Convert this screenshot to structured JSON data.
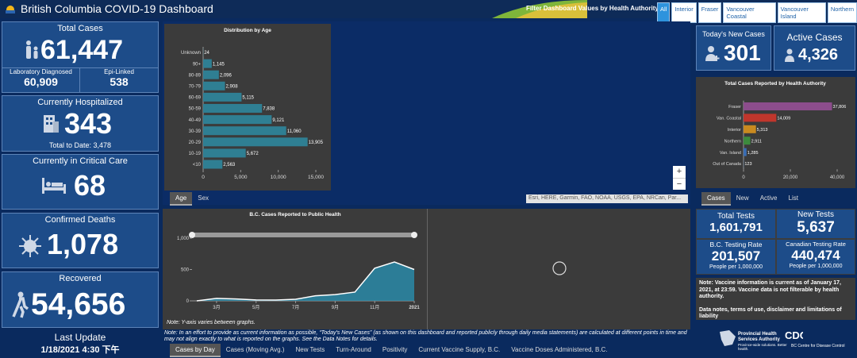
{
  "header": {
    "title": "British Columbia COVID-19 Dashboard",
    "filter_label": "Filter Dashboard Values by Health Authority:",
    "filters": [
      "All",
      "Interior",
      "Fraser",
      "Vancouver Coastal",
      "Vancouver Island",
      "Northern"
    ]
  },
  "left": {
    "total_cases": {
      "label": "Total Cases",
      "value": "61,447",
      "lab_label": "Laboratory Diagnosed",
      "lab_value": "60,909",
      "epi_label": "Epi-Linked",
      "epi_value": "538"
    },
    "hospitalized": {
      "label": "Currently Hospitalized",
      "value": "343",
      "note": "Total to Date: 3,478"
    },
    "critical": {
      "label": "Currently in Critical Care",
      "value": "68"
    },
    "deaths": {
      "label": "Confirmed Deaths",
      "value": "1,078"
    },
    "recovered": {
      "label": "Recovered",
      "value": "54,656"
    },
    "update": {
      "label": "Last Update",
      "value": "1/18/2021 4:30 下午"
    }
  },
  "map": {
    "tabs": [
      "Age",
      "Sex"
    ],
    "attribution": "Esri, HERE, Garmin, FAO, NOAA, USGS, EPA, NRCan, Par...",
    "zoom": [
      "+",
      "−"
    ]
  },
  "right": {
    "new_cases": {
      "label": "Today's New Cases",
      "value": "301"
    },
    "active": {
      "label": "Active Cases",
      "value": "4,326"
    },
    "tabs": [
      "Cases",
      "New",
      "Active",
      "List"
    ],
    "tests": {
      "total_label": "Total Tests",
      "total_value": "1,601,791",
      "new_label": "New Tests",
      "new_value": "5,637",
      "bc_label": "B.C. Testing Rate",
      "bc_value": "201,507",
      "bc_unit": "People per 1,000,000",
      "ca_label": "Canadian Testing Rate",
      "ca_value": "440,474",
      "ca_unit": "People per 1,000,000"
    },
    "note": "Note: Vaccine information is current as of January 17, 2021, at 23:59. Vaccine data is not filterable by health authority.",
    "links": "Data notes, terms of use, disclaimer and limitations of liability",
    "logo1": "Provincial Health Services Authority",
    "logo1_tag": "Province-wide solutions. Better health.",
    "logo2": "BC Centre for Disease Control"
  },
  "bottom": {
    "graph_note": "Note: Y-axis varies between graphs.",
    "note": "Note: In an effort to provide as current information as possible, “Today's New Cases” (as shown on this dashboard and reported publicly through daily media statements) are calculated at different points in time and may not align exactly to what is reported on the graphs. See the Data Notes for details.",
    "tabs": [
      "Cases by Day",
      "Cases (Moving Avg.)",
      "New Tests",
      "Turn-Around",
      "Positivity",
      "Current Vaccine Supply, B.C.",
      "Vaccine Doses Administered, B.C."
    ]
  },
  "chart_data": [
    {
      "type": "hbar",
      "title": "Distribution by Age",
      "categories": [
        "Unknown",
        "90+",
        "80-89",
        "70-79",
        "60-69",
        "50-59",
        "40-49",
        "30-39",
        "20-29",
        "10-19",
        "<10"
      ],
      "values": [
        24,
        1145,
        2096,
        2908,
        5115,
        7838,
        9121,
        11060,
        13905,
        5672,
        2563
      ],
      "value_labels": [
        "24",
        "1,145",
        "2,096",
        "2,908",
        "5,115",
        "7,838",
        "9,121",
        "11,060",
        "13,905",
        "5,672",
        "2,563"
      ],
      "color": "#2f7f93",
      "xlim": [
        0,
        15000
      ],
      "xticks": [
        0,
        {
          "value": 5000,
          "label": "5,000"
        },
        {
          "value": 10000,
          "label": "10,000"
        },
        {
          "value": 15000,
          "label": "15,000"
        }
      ]
    },
    {
      "type": "hbar",
      "title": "Total Cases Reported by Health Authority",
      "categories": [
        "Fraser",
        "Van. Coastal",
        "Interior",
        "Northern",
        "Van. Island",
        "Out of Canada"
      ],
      "values": [
        37806,
        14009,
        5313,
        2911,
        1285,
        123
      ],
      "value_labels": [
        "37,806",
        "14,009",
        "5,313",
        "2,911",
        "1,285",
        "123"
      ],
      "colors": [
        "#8c4d8c",
        "#c0362c",
        "#c98a1f",
        "#3d8a3d",
        "#3a6db3",
        "#5a7fa8"
      ],
      "xlim": [
        0,
        40000
      ],
      "xticks": [
        0,
        {
          "value": 20000,
          "label": "20,000"
        },
        {
          "value": 40000,
          "label": "40,000"
        }
      ]
    },
    {
      "type": "line",
      "title": "B.C. Cases Reported to Public Health",
      "categories": [
        null,
        "3月",
        null,
        "5月",
        null,
        "7月",
        null,
        "9月",
        null,
        "11月",
        null,
        "2021"
      ],
      "series": [
        {
          "name": "Cases",
          "color": "#ffffff",
          "values": [
            0,
            40,
            30,
            15,
            12,
            25,
            80,
            100,
            140,
            520,
            620,
            500
          ]
        }
      ],
      "area_color": "#2a8aa8",
      "ylim": [
        0,
        1000
      ],
      "yticks": [
        0,
        500,
        {
          "value": 1000,
          "label": "1,000"
        }
      ]
    }
  ]
}
